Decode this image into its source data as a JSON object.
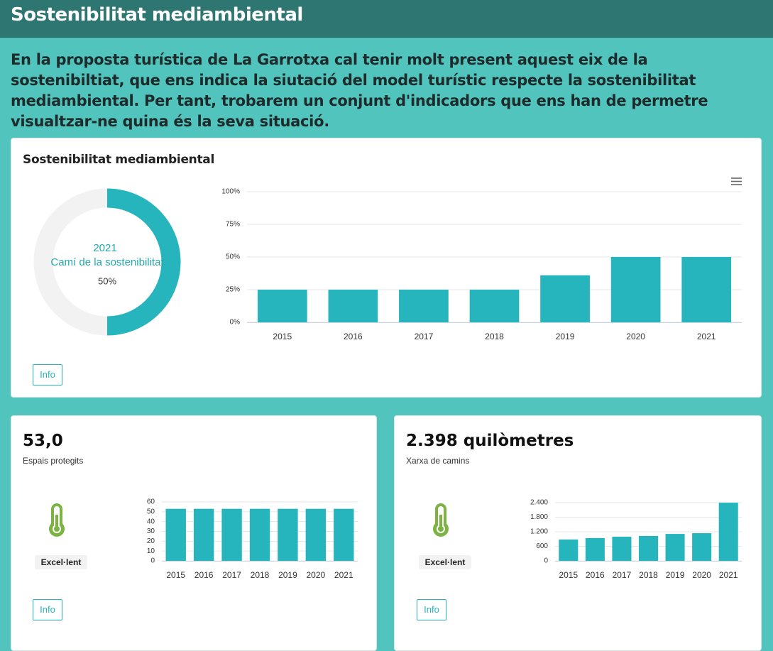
{
  "header": {
    "title": "Sostenibilitat mediambiental"
  },
  "intro": "En la proposta turística de La Garrotxa cal tenir molt present aquest eix de la sostenibiltiat, que ens indica la siutació del model turístic respecte la sostenibilitat mediambiental. Per tant, trobarem un conjunt d'indicadors que ens han de permetre visualtzar-ne quina és la seva situació.",
  "cards": [
    {
      "title": "Sostenibilitat mediambiental",
      "button": "Info"
    },
    {
      "kpi": "53,0",
      "subtitle": "Espais protegits",
      "badge": "Excel·lent",
      "button": "Info"
    },
    {
      "kpi": "2.398 quilòmetres",
      "subtitle": "Xarxa de camins",
      "badge": "Excel·lent",
      "button": "Info"
    }
  ],
  "chart_data": [
    {
      "type": "donut",
      "year": "2021",
      "label": "Camí de la sostenibilitat",
      "values": [
        50
      ],
      "value_labels": [
        "50%"
      ],
      "ylim": [
        0,
        100
      ],
      "color": "#26b5bd",
      "track_color": "#f2f2f2"
    },
    {
      "type": "bar",
      "categories": [
        "2015",
        "2016",
        "2017",
        "2018",
        "2019",
        "2020",
        "2021"
      ],
      "values": [
        25,
        25,
        25,
        25,
        36,
        50,
        50
      ],
      "color": "#26b5bd",
      "ylim": [
        0,
        100
      ],
      "yticks": [
        {
          "value": 0,
          "label": "0%"
        },
        {
          "value": 25,
          "label": "25%"
        },
        {
          "value": 50,
          "label": "50%"
        },
        {
          "value": 75,
          "label": "75%"
        },
        {
          "value": 100,
          "label": "100%"
        }
      ],
      "grid": true
    },
    {
      "type": "bar",
      "categories": [
        "2015",
        "2016",
        "2017",
        "2018",
        "2019",
        "2020",
        "2021"
      ],
      "values": [
        53,
        53,
        53,
        53,
        53,
        53,
        53
      ],
      "color": "#26b5bd",
      "ylim": [
        0,
        60
      ],
      "yticks": [
        0,
        10,
        20,
        30,
        40,
        50,
        60
      ],
      "grid": true
    },
    {
      "type": "bar",
      "categories": [
        "2015",
        "2016",
        "2017",
        "2018",
        "2019",
        "2020",
        "2021"
      ],
      "values": [
        880,
        940,
        995,
        1025,
        1110,
        1140,
        2398
      ],
      "color": "#26b5bd",
      "ylim": [
        0,
        2400
      ],
      "yticks": [
        0,
        600,
        {
          "value": 1200,
          "label": "1.200"
        },
        {
          "value": 1800,
          "label": "1.800"
        },
        {
          "value": 2400,
          "label": "2.400"
        }
      ],
      "grid": true
    }
  ]
}
